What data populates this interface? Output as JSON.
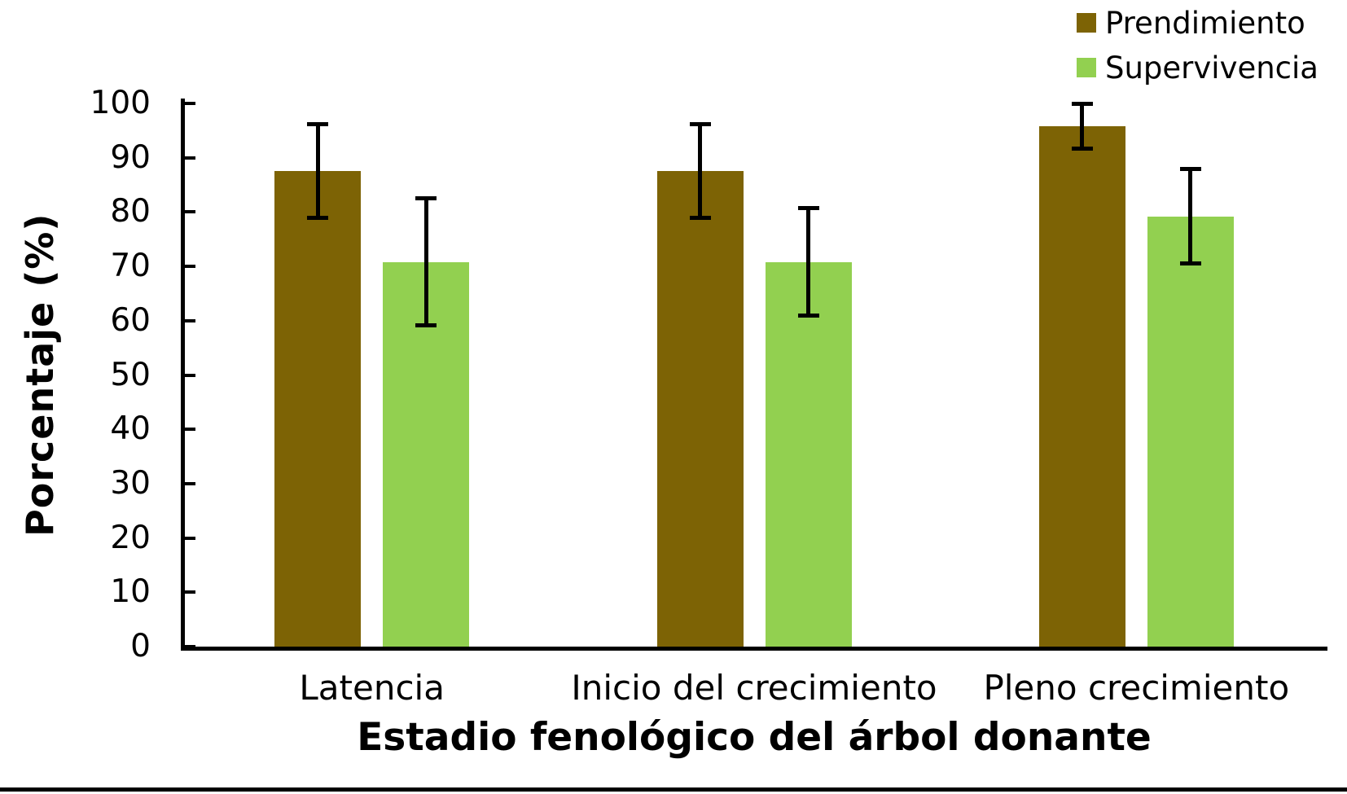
{
  "chart_data": {
    "type": "bar",
    "title": "",
    "xlabel": "Estadio fenológico del árbol donante",
    "ylabel": "Porcentaje (%)",
    "categories": [
      "Latencia",
      "Inicio del crecimiento",
      "Pleno crecimiento"
    ],
    "series": [
      {
        "name": "Prendimiento",
        "color": "#7D6305",
        "values": [
          87.5,
          87.5,
          95.8
        ],
        "errors": [
          8.7,
          8.7,
          4.2
        ]
      },
      {
        "name": "Supervivencia",
        "color": "#92D050",
        "values": [
          70.8,
          70.8,
          79.2
        ],
        "errors": [
          11.8,
          10.0,
          8.8
        ]
      }
    ],
    "ylim": [
      0,
      100
    ],
    "yticks": [
      0,
      10,
      20,
      30,
      40,
      50,
      60,
      70,
      80,
      90,
      100
    ],
    "grid": false,
    "error_bars": true,
    "legend_position": "top-right",
    "axis_color": "#000000",
    "background": "#FFFFFF"
  }
}
